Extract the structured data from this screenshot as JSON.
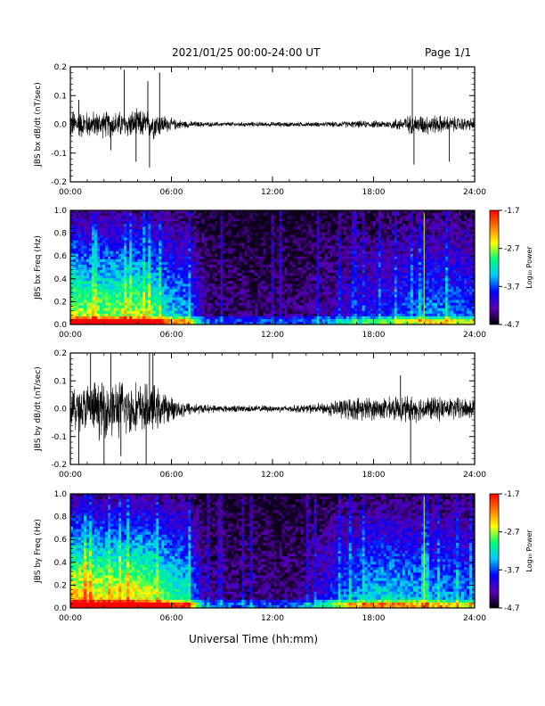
{
  "header": {
    "title": "2021/01/25  00:00-24:00 UT",
    "page": "Page 1/1"
  },
  "x_axis_title": "Universal Time (hh:mm)",
  "colors": {
    "trace": "#000000",
    "colorbar": [
      "#000000",
      "#5a00b4",
      "#0000ff",
      "#00c8ff",
      "#00ff78",
      "#ffff00",
      "#ff7800",
      "#ff0000"
    ]
  },
  "chart_data": [
    {
      "type": "line",
      "ylabel": "JBS bx dB/dt (nT/sec)",
      "xlim": [
        0,
        24
      ],
      "ylim": [
        -0.2,
        0.2
      ],
      "xticks": [
        "00:00",
        "06:00",
        "12:00",
        "18:00",
        "24:00"
      ],
      "yticks": [
        "0.2",
        "0.1",
        "0.0",
        "-0.1",
        "-0.2"
      ],
      "envelope": {
        "hours": [
          0,
          1,
          2,
          3,
          4,
          5,
          6,
          7,
          8,
          9,
          10,
          11,
          12,
          13,
          14,
          15,
          16,
          17,
          18,
          19,
          20,
          21,
          22,
          23,
          24
        ],
        "amplitude": [
          0.05,
          0.045,
          0.045,
          0.045,
          0.05,
          0.05,
          0.02,
          0.012,
          0.008,
          0.008,
          0.008,
          0.008,
          0.008,
          0.008,
          0.008,
          0.008,
          0.01,
          0.012,
          0.012,
          0.015,
          0.03,
          0.035,
          0.03,
          0.025,
          0.02
        ]
      },
      "spikes": [
        {
          "hour": 0.5,
          "value": 0.085
        },
        {
          "hour": 2.4,
          "value": -0.09
        },
        {
          "hour": 3.2,
          "value": 0.19
        },
        {
          "hour": 3.9,
          "value": -0.13
        },
        {
          "hour": 4.6,
          "value": 0.15
        },
        {
          "hour": 4.7,
          "value": -0.15
        },
        {
          "hour": 5.3,
          "value": 0.18
        },
        {
          "hour": 20.3,
          "value": 0.195
        },
        {
          "hour": 20.4,
          "value": -0.14
        },
        {
          "hour": 22.5,
          "value": -0.13
        }
      ]
    },
    {
      "type": "heatmap",
      "ylabel": "JBS bx Freq (Hz)",
      "xlim": [
        0,
        24
      ],
      "ylim": [
        0.0,
        1.0
      ],
      "xticks": [
        "00:00",
        "06:00",
        "12:00",
        "18:00",
        "24:00"
      ],
      "yticks": [
        "1.0",
        "0.8",
        "0.6",
        "0.4",
        "0.2",
        "0.0"
      ],
      "colorbar": {
        "label": "Log₁₀ Power",
        "min": -4.7,
        "max": -1.7,
        "ticks": [
          "-1.7",
          "-2.7",
          "-3.7",
          "-4.7"
        ]
      },
      "activity_by_hour": [
        0.75,
        0.7,
        0.7,
        0.72,
        0.72,
        0.65,
        0.5,
        0.45,
        0.12,
        0.1,
        0.1,
        0.1,
        0.1,
        0.1,
        0.12,
        0.15,
        0.2,
        0.25,
        0.3,
        0.32,
        0.38,
        0.42,
        0.42,
        0.4,
        0.38
      ],
      "line_hours": [
        21.0
      ]
    },
    {
      "type": "line",
      "ylabel": "JBS by dB/dt (nT/sec)",
      "xlim": [
        0,
        24
      ],
      "ylim": [
        -0.2,
        0.2
      ],
      "xticks": [
        "00:00",
        "06:00",
        "12:00",
        "18:00",
        "24:00"
      ],
      "yticks": [
        "0.2",
        "0.1",
        "0.0",
        "-0.1",
        "-0.2"
      ],
      "envelope": {
        "hours": [
          0,
          1,
          2,
          3,
          4,
          5,
          6,
          7,
          8,
          9,
          10,
          11,
          12,
          13,
          14,
          15,
          16,
          17,
          18,
          19,
          20,
          21,
          22,
          23,
          24
        ],
        "amplitude": [
          0.07,
          0.09,
          0.1,
          0.1,
          0.09,
          0.08,
          0.04,
          0.025,
          0.015,
          0.012,
          0.012,
          0.012,
          0.012,
          0.012,
          0.015,
          0.02,
          0.035,
          0.04,
          0.04,
          0.04,
          0.045,
          0.045,
          0.04,
          0.04,
          0.04
        ]
      },
      "spikes": [
        {
          "hour": 0.5,
          "value": -0.2
        },
        {
          "hour": 1.2,
          "value": 0.2
        },
        {
          "hour": 2.0,
          "value": -0.2
        },
        {
          "hour": 2.4,
          "value": 0.2
        },
        {
          "hour": 3.0,
          "value": -0.17
        },
        {
          "hour": 4.5,
          "value": -0.2
        },
        {
          "hour": 4.7,
          "value": 0.2
        },
        {
          "hour": 4.9,
          "value": 0.2
        },
        {
          "hour": 20.2,
          "value": -0.2
        },
        {
          "hour": 19.6,
          "value": 0.12
        }
      ]
    },
    {
      "type": "heatmap",
      "ylabel": "JBS by Freq (Hz)",
      "xlim": [
        0,
        24
      ],
      "ylim": [
        0.0,
        1.0
      ],
      "xticks": [
        "00:00",
        "06:00",
        "12:00",
        "18:00",
        "24:00"
      ],
      "yticks": [
        "1.0",
        "0.8",
        "0.6",
        "0.4",
        "0.2",
        "0.0"
      ],
      "colorbar": {
        "label": "Log₁₀ Power",
        "min": -4.7,
        "max": -1.7,
        "ticks": [
          "-1.7",
          "-2.7",
          "-3.7",
          "-4.7"
        ]
      },
      "activity_by_hour": [
        0.85,
        0.82,
        0.8,
        0.8,
        0.8,
        0.75,
        0.62,
        0.55,
        0.15,
        0.12,
        0.12,
        0.12,
        0.12,
        0.12,
        0.15,
        0.25,
        0.35,
        0.45,
        0.5,
        0.52,
        0.48,
        0.45,
        0.45,
        0.42,
        0.4
      ],
      "line_hours": [
        21.0
      ]
    }
  ]
}
